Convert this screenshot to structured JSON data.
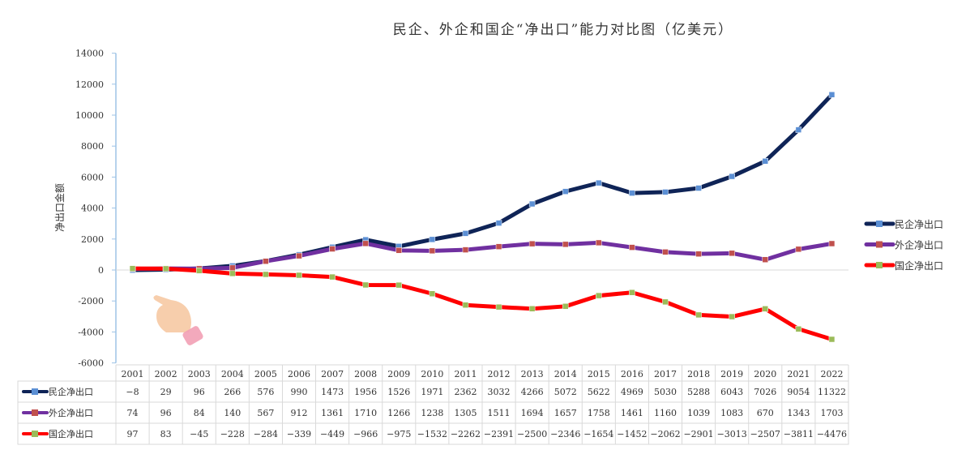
{
  "chart_data": {
    "type": "line",
    "title": "民企、外企和国企“净出口”能力对比图（亿美元）",
    "xlabel": "",
    "ylabel": "净出口金额",
    "ylim": [
      -6000,
      14000
    ],
    "yticks": [
      14000,
      12000,
      10000,
      8000,
      6000,
      4000,
      2000,
      0,
      -2000,
      -4000,
      -6000
    ],
    "legend_position": "right",
    "grid": false,
    "categories": [
      "2001",
      "2002",
      "2003",
      "2004",
      "2005",
      "2006",
      "2007",
      "2008",
      "2009",
      "2010",
      "2011",
      "2012",
      "2013",
      "2014",
      "2015",
      "2016",
      "2017",
      "2018",
      "2019",
      "2020",
      "2021",
      "2022"
    ],
    "series": [
      {
        "name": "民企净出口",
        "color": "#0f2457",
        "marker": "#5b8fd4",
        "values": [
          -8,
          29,
          96,
          266,
          576,
          990,
          1473,
          1956,
          1526,
          1971,
          2362,
          3032,
          4266,
          5072,
          5622,
          4969,
          5030,
          5288,
          6043,
          7026,
          9054,
          11322
        ]
      },
      {
        "name": "外企净出口",
        "color": "#7030a0",
        "marker": "#c0504d",
        "values": [
          74,
          96,
          84,
          140,
          567,
          912,
          1361,
          1710,
          1266,
          1238,
          1305,
          1511,
          1694,
          1657,
          1758,
          1461,
          1160,
          1039,
          1083,
          670,
          1343,
          1703
        ]
      },
      {
        "name": "国企净出口",
        "color": "#ff0000",
        "marker": "#9bbb59",
        "values": [
          97,
          83,
          -45,
          -228,
          -284,
          -339,
          -449,
          -966,
          -975,
          -1532,
          -2262,
          -2391,
          -2500,
          -2346,
          -1654,
          -1452,
          -2062,
          -2901,
          -3013,
          -2507,
          -3811,
          -4476
        ]
      }
    ]
  }
}
